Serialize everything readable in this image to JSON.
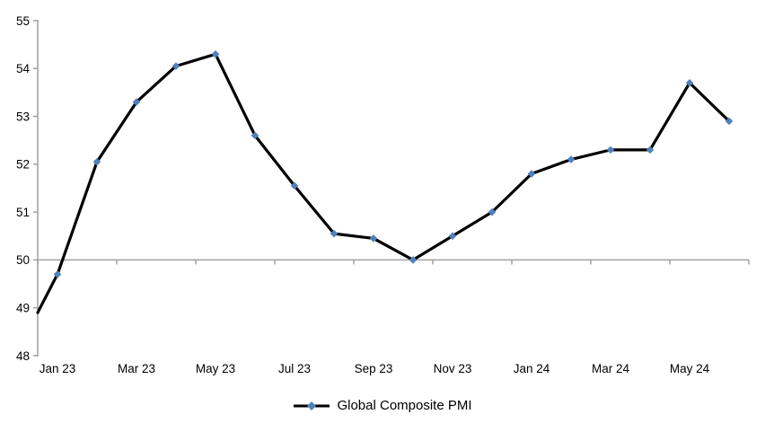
{
  "chart_data": {
    "type": "line",
    "title": "",
    "categories": [
      "Jan 23",
      "Feb 23",
      "Mar 23",
      "Apr 23",
      "May 23",
      "Jun 23",
      "Jul 23",
      "Aug 23",
      "Sep 23",
      "Oct 23",
      "Nov 23",
      "Dec 23",
      "Jan 24",
      "Feb 24",
      "Mar 24",
      "Apr 24",
      "May 24",
      "Jun 24"
    ],
    "series": [
      {
        "name": "Global Composite PMI",
        "values": [
          49.7,
          52.05,
          53.3,
          54.05,
          54.3,
          52.6,
          51.55,
          50.55,
          50.45,
          50.0,
          50.5,
          51.0,
          51.8,
          52.1,
          52.3,
          52.3,
          53.7,
          52.9
        ],
        "clipped_left_edge_value": 48.9,
        "line_color": "#000000",
        "marker": "diamond",
        "marker_color": "#4F81BD"
      }
    ],
    "ylim": [
      48,
      55
    ],
    "y_ticks": [
      55,
      54,
      53,
      52,
      51,
      50,
      49,
      48
    ],
    "x_tick_labels": [
      "Jan 23",
      "Mar 23",
      "May 23",
      "Jul 23",
      "Sep 23",
      "Nov 23",
      "Jan 24",
      "Mar 24",
      "May 24"
    ],
    "x_label_interval": 2,
    "axis_crosses_at": 50,
    "axis_color": "#A0A0A0",
    "text_color": "#000000",
    "grid": "single horizontal axis line at value 50 with downward ticks",
    "legend_position": "bottom-center"
  }
}
